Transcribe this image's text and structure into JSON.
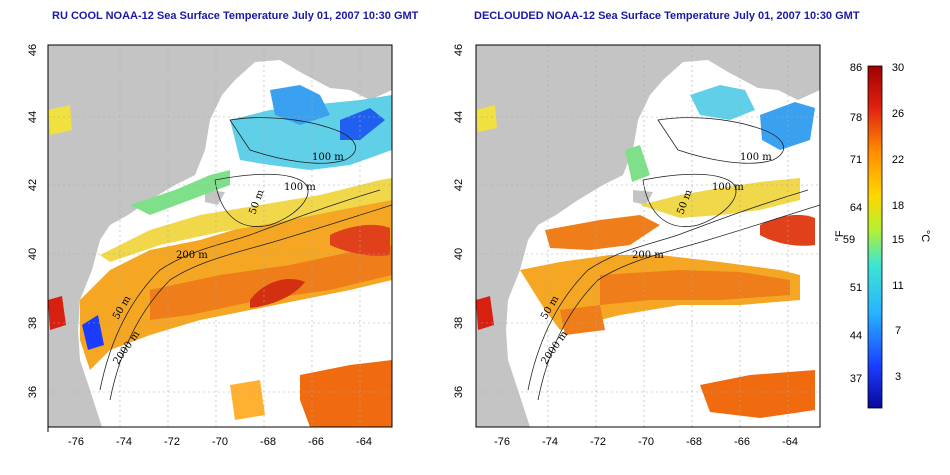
{
  "titles": {
    "left": "RU COOL NOAA-12 Sea Surface Temperature July 01, 2007 10:30 GMT",
    "right": "DECLOUDED NOAA-12 Sea Surface Temperature July 01, 2007 10:30 GMT"
  },
  "axes": {
    "lon_ticks": [
      "-76",
      "-74",
      "-72",
      "-70",
      "-68",
      "-66",
      "-64"
    ],
    "lat_ticks": [
      "46",
      "44",
      "42",
      "40",
      "38",
      "36"
    ]
  },
  "contour_labels": {
    "left": [
      "100 m",
      "100 m",
      "50 m",
      "200 m",
      "50 m",
      "2000 m"
    ],
    "right": [
      "100 m",
      "100 m",
      "50 m",
      "200 m",
      "50 m",
      "2000 m"
    ]
  },
  "colorbar": {
    "unit_f": "°F",
    "unit_c": "°C",
    "f_labels": [
      "86",
      "78",
      "71",
      "64",
      "59",
      "51",
      "44",
      "37"
    ],
    "c_labels": [
      "30",
      "26",
      "22",
      "18",
      "15",
      "11",
      "7",
      "3"
    ],
    "colors": [
      "#08089a",
      "#1a3cff",
      "#28b4ff",
      "#3ce6d2",
      "#b4f032",
      "#ffd700",
      "#ff8c00",
      "#e02010",
      "#a00000"
    ]
  },
  "colors": {
    "land": "#c4c4c4",
    "title": "#1a1aa6"
  }
}
